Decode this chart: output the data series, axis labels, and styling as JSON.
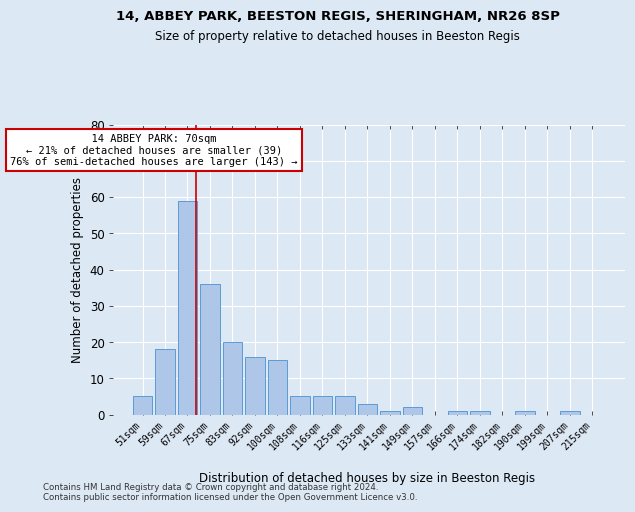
{
  "title1": "14, ABBEY PARK, BEESTON REGIS, SHERINGHAM, NR26 8SP",
  "title2": "Size of property relative to detached houses in Beeston Regis",
  "xlabel": "Distribution of detached houses by size in Beeston Regis",
  "ylabel": "Number of detached properties",
  "footnote": "Contains HM Land Registry data © Crown copyright and database right 2024.\nContains public sector information licensed under the Open Government Licence v3.0.",
  "categories": [
    "51sqm",
    "59sqm",
    "67sqm",
    "75sqm",
    "83sqm",
    "92sqm",
    "100sqm",
    "108sqm",
    "116sqm",
    "125sqm",
    "133sqm",
    "141sqm",
    "149sqm",
    "157sqm",
    "166sqm",
    "174sqm",
    "182sqm",
    "190sqm",
    "199sqm",
    "207sqm",
    "215sqm"
  ],
  "values": [
    5,
    18,
    59,
    36,
    20,
    16,
    15,
    5,
    5,
    5,
    3,
    1,
    2,
    0,
    1,
    1,
    0,
    1,
    0,
    1,
    0
  ],
  "bar_color": "#aec6e8",
  "bar_edge_color": "#5b9bd5",
  "marker_label": "14 ABBEY PARK: 70sqm",
  "marker_pct_smaller": "21% of detached houses are smaller (39)",
  "marker_pct_larger": "76% of semi-detached houses are larger (143)",
  "marker_line_color": "#cc0000",
  "annotation_box_color": "#cc0000",
  "ylim": [
    0,
    80
  ],
  "yticks": [
    0,
    10,
    20,
    30,
    40,
    50,
    60,
    70,
    80
  ],
  "bg_color": "#dde8f5",
  "grid_color": "#ffffff"
}
